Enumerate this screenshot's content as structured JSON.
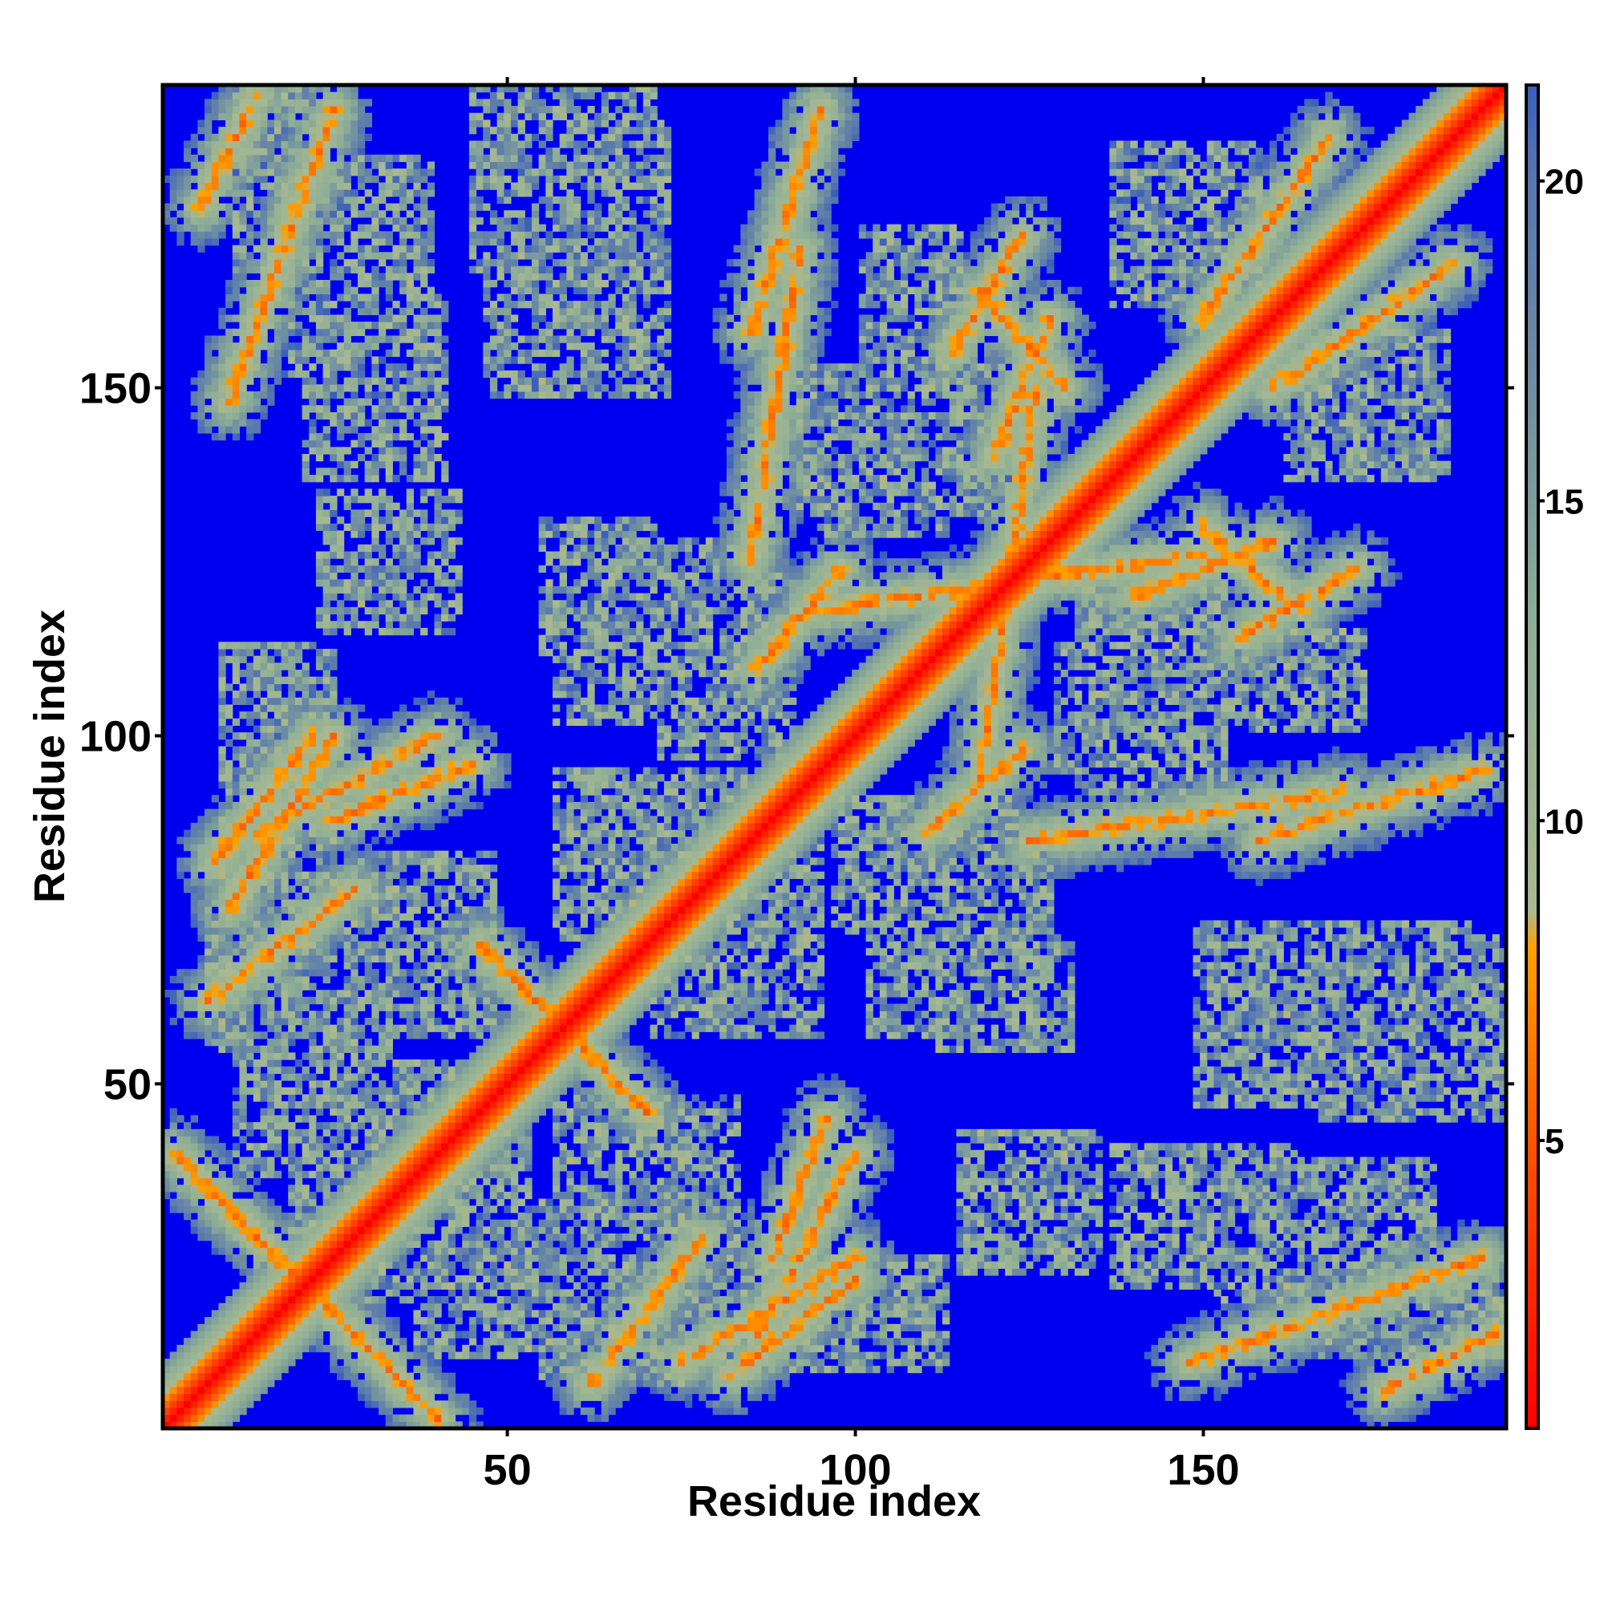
{
  "chart_data": {
    "type": "heatmap",
    "title": "",
    "xlabel": "Residue index",
    "ylabel": "Residue index",
    "n_residues": 193,
    "xlim": [
      0.5,
      193.5
    ],
    "ylim": [
      0.5,
      193.5
    ],
    "x_ticks": [
      50,
      100,
      150
    ],
    "y_ticks": [
      50,
      100,
      150
    ],
    "x_tick_labels": [
      "50",
      "100",
      "150"
    ],
    "y_tick_labels": [
      "50",
      "100",
      "150"
    ],
    "colorbar": {
      "range": [
        0.5,
        21.5
      ],
      "ticks": [
        5,
        10,
        15,
        20
      ],
      "tick_labels": [
        "5",
        "10",
        "15",
        "20"
      ],
      "stops": [
        {
          "value": 0.5,
          "color": "#ff0000"
        },
        {
          "value": 5,
          "color": "#ff5500"
        },
        {
          "value": 8,
          "color": "#ffa000"
        },
        {
          "value": 8.6,
          "color": "#a9b990"
        },
        {
          "value": 13,
          "color": "#8eae96"
        },
        {
          "value": 17,
          "color": "#6d8ca2"
        },
        {
          "value": 20,
          "color": "#5877b0"
        },
        {
          "value": 21.5,
          "color": "#3a5fbc"
        }
      ],
      "background_color": "#0000f0"
    },
    "contact_regions": [
      {
        "type": "diagonal",
        "half_width": 6
      },
      {
        "type": "band",
        "i": [
          2,
          40
        ],
        "j": [
          40,
          2
        ],
        "half_width": 2.5
      },
      {
        "type": "band",
        "i": [
          46,
          70
        ],
        "j": [
          70,
          46
        ],
        "half_width": 2.2
      },
      {
        "type": "band",
        "i": [
          62,
          78
        ],
        "j": [
          7,
          28
        ],
        "half_width": 3
      },
      {
        "type": "band",
        "i": [
          82,
          100
        ],
        "j": [
          8,
          22
        ],
        "half_width": 3
      },
      {
        "type": "band",
        "i": [
          86,
          100
        ],
        "j": [
          14,
          40
        ],
        "half_width": 3
      },
      {
        "type": "band",
        "i": [
          85,
          92
        ],
        "j": [
          125,
          170
        ],
        "half_width": 2.5
      },
      {
        "type": "band",
        "i": [
          110,
          124
        ],
        "j": [
          86,
          98
        ],
        "half_width": 3
      },
      {
        "type": "band",
        "i": [
          118,
          126
        ],
        "j": [
          94,
          150
        ],
        "half_width": 2.5
      },
      {
        "type": "band",
        "i": [
          120,
          128
        ],
        "j": [
          140,
          160
        ],
        "half_width": 3
      },
      {
        "type": "band",
        "i": [
          114,
          124
        ],
        "j": [
          155,
          172
        ],
        "half_width": 3
      },
      {
        "type": "band",
        "i": [
          160,
          186
        ],
        "j": [
          150,
          168
        ],
        "half_width": 3
      },
      {
        "type": "band",
        "i": [
          150,
          164
        ],
        "j": [
          130,
          118
        ],
        "half_width": 3
      },
      {
        "type": "band",
        "i": [
          158,
          190
        ],
        "j": [
          85,
          95
        ],
        "half_width": 3
      },
      {
        "type": "band",
        "i": [
          148,
          190
        ],
        "j": [
          10,
          25
        ],
        "half_width": 3
      },
      {
        "type": "band",
        "i": [
          176,
          192
        ],
        "j": [
          6,
          14
        ],
        "half_width": 3
      },
      {
        "type": "band",
        "i": [
          88,
          96
        ],
        "j": [
          25,
          45
        ],
        "half_width": 3
      },
      {
        "type": "band",
        "i": [
          75,
          100
        ],
        "j": [
          10,
          25
        ],
        "half_width": 3
      },
      {
        "type": "patch",
        "i": [
          14,
          20
        ],
        "j": [
          170,
          190
        ]
      },
      {
        "type": "patch",
        "i": [
          22,
          36
        ],
        "j": [
          155,
          180
        ]
      },
      {
        "type": "patch",
        "i": [
          48,
          68
        ],
        "j": [
          170,
          190
        ]
      },
      {
        "type": "patch",
        "i": [
          12,
          22
        ],
        "j": [
          60,
          110
        ]
      },
      {
        "type": "patch",
        "i": [
          10,
          20
        ],
        "j": [
          58,
          72
        ]
      },
      {
        "type": "patch",
        "i": [
          26,
          40
        ],
        "j": [
          118,
          132
        ]
      },
      {
        "type": "patch",
        "i": [
          60,
          80
        ],
        "j": [
          105,
          125
        ]
      },
      {
        "type": "patch",
        "i": [
          74,
          92
        ],
        "j": [
          60,
          88
        ]
      },
      {
        "type": "patch",
        "i": [
          95,
          120
        ],
        "j": [
          135,
          150
        ]
      },
      {
        "type": "patch",
        "i": [
          132,
          150
        ],
        "j": [
          98,
          110
        ]
      },
      {
        "type": "patch",
        "i": [
          140,
          160
        ],
        "j": [
          24,
          38
        ]
      },
      {
        "type": "patch",
        "i": [
          152,
          185
        ],
        "j": [
          50,
          70
        ]
      },
      {
        "type": "patch",
        "i": [
          150,
          170
        ],
        "j": [
          104,
          112
        ]
      },
      {
        "type": "patch",
        "i": [
          165,
          182
        ],
        "j": [
          140,
          155
        ]
      },
      {
        "type": "patch",
        "i": [
          115,
          128
        ],
        "j": [
          58,
          68
        ]
      },
      {
        "type": "patch",
        "i": [
          100,
          120
        ],
        "j": [
          75,
          88
        ]
      },
      {
        "type": "patch",
        "i": [
          60,
          80
        ],
        "j": [
          30,
          45
        ]
      },
      {
        "type": "patch",
        "i": [
          40,
          60
        ],
        "j": [
          14,
          30
        ]
      },
      {
        "type": "patch",
        "i": [
          22,
          40
        ],
        "j": [
          32,
          50
        ]
      }
    ]
  }
}
